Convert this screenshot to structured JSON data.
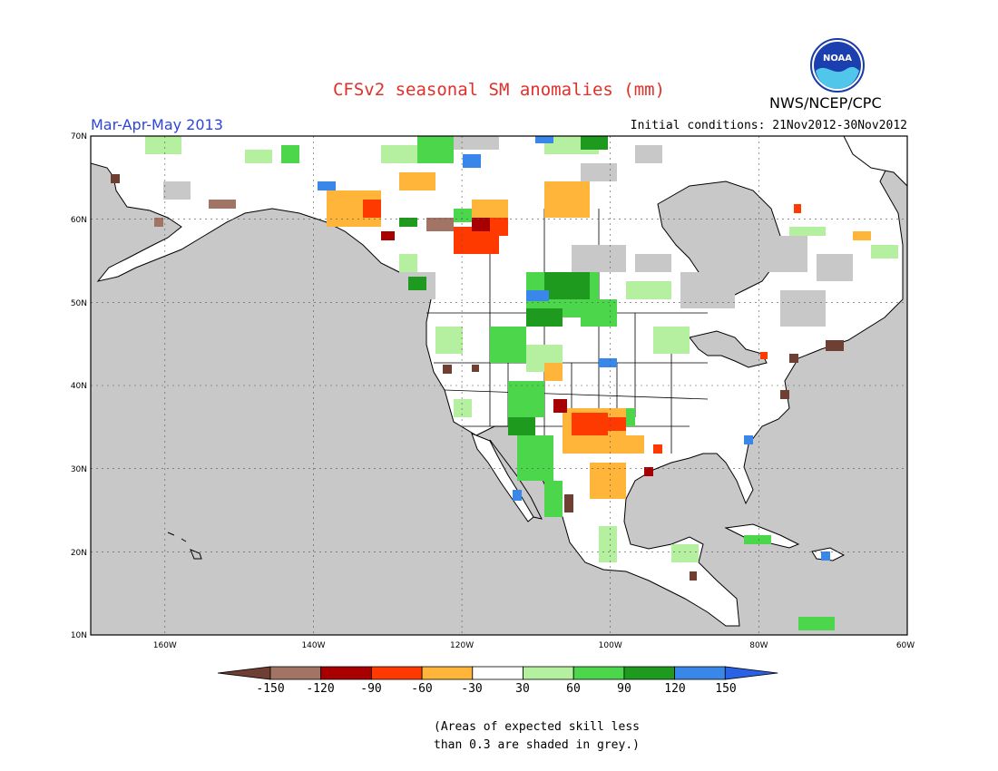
{
  "title": "CFSv2 seasonal SM anomalies (mm)",
  "period": "Mar-Apr-May 2013",
  "initial_conditions": "Initial conditions: 21Nov2012-30Nov2012",
  "agency": "NWS/NCEP/CPC",
  "logo_text": "NOAA",
  "map": {
    "lat_labels": [
      "70N",
      "60N",
      "50N",
      "40N",
      "30N",
      "20N",
      "10N"
    ],
    "lon_labels": [
      "160W",
      "140W",
      "120W",
      "100W",
      "80W",
      "60W"
    ]
  },
  "legend": {
    "tick_labels": [
      "-150",
      "-120",
      "-90",
      "-60",
      "-30",
      "30",
      "60",
      "90",
      "120",
      "150"
    ],
    "colors": [
      "#6e3f32",
      "#a27465",
      "#a80000",
      "#ff3a00",
      "#ffb43a",
      "#ffffff",
      "#b4f0a0",
      "#4bd64b",
      "#1e9a1e",
      "#3a87ea",
      "#2a62e6"
    ]
  },
  "note_lines": [
    "(Areas of expected skill less",
    "than 0.3 are shaded in grey.)"
  ]
}
